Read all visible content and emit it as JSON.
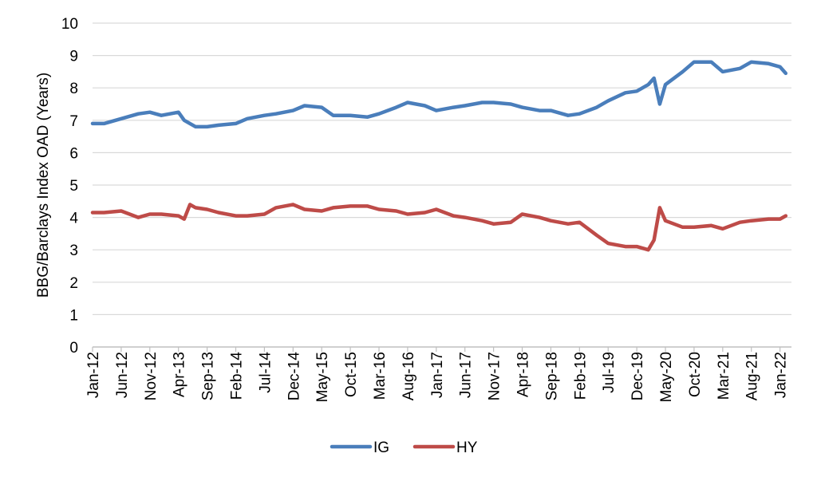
{
  "chart_data": {
    "type": "line",
    "title": "",
    "xlabel": "",
    "ylabel": "BBG/Barclays Index OAD (Years)",
    "ylim": [
      0,
      10
    ],
    "yticks": [
      "0",
      "1",
      "2",
      "3",
      "4",
      "5",
      "6",
      "7",
      "8",
      "9",
      "10"
    ],
    "x_tick_labels": [
      "Jan-12",
      "Jun-12",
      "Nov-12",
      "Apr-13",
      "Sep-13",
      "Feb-14",
      "Jul-14",
      "Dec-14",
      "May-15",
      "Oct-15",
      "Mar-16",
      "Aug-16",
      "Jan-17",
      "Jun-17",
      "Nov-17",
      "Apr-18",
      "Sep-18",
      "Feb-19",
      "Jul-19",
      "Dec-19",
      "May-20",
      "Oct-20",
      "Mar-21",
      "Aug-21",
      "Jan-22"
    ],
    "x_range": [
      "2012-01",
      "2022-03"
    ],
    "grid": "horizontal",
    "legend_position": "bottom",
    "x": [
      "2012-01",
      "2012-03",
      "2012-06",
      "2012-09",
      "2012-11",
      "2013-01",
      "2013-04",
      "2013-05",
      "2013-06",
      "2013-07",
      "2013-09",
      "2013-11",
      "2014-02",
      "2014-04",
      "2014-07",
      "2014-09",
      "2014-12",
      "2015-02",
      "2015-05",
      "2015-07",
      "2015-10",
      "2016-01",
      "2016-03",
      "2016-06",
      "2016-08",
      "2016-11",
      "2017-01",
      "2017-04",
      "2017-06",
      "2017-09",
      "2017-11",
      "2018-02",
      "2018-04",
      "2018-07",
      "2018-09",
      "2018-12",
      "2019-02",
      "2019-05",
      "2019-07",
      "2019-10",
      "2019-12",
      "2020-02",
      "2020-03",
      "2020-04",
      "2020-05",
      "2020-08",
      "2020-10",
      "2021-01",
      "2021-03",
      "2021-06",
      "2021-08",
      "2021-11",
      "2022-01",
      "2022-02"
    ],
    "series": [
      {
        "name": "IG",
        "color": "#4A7EBB",
        "values": [
          6.9,
          6.9,
          7.05,
          7.2,
          7.25,
          7.15,
          7.25,
          7.0,
          6.9,
          6.8,
          6.8,
          6.85,
          6.9,
          7.05,
          7.15,
          7.2,
          7.3,
          7.45,
          7.4,
          7.15,
          7.15,
          7.1,
          7.2,
          7.4,
          7.55,
          7.45,
          7.3,
          7.4,
          7.45,
          7.55,
          7.55,
          7.5,
          7.4,
          7.3,
          7.3,
          7.15,
          7.2,
          7.4,
          7.6,
          7.85,
          7.9,
          8.1,
          8.3,
          7.5,
          8.1,
          8.5,
          8.8,
          8.8,
          8.5,
          8.6,
          8.8,
          8.75,
          8.65,
          8.45
        ]
      },
      {
        "name": "HY",
        "color": "#BE4B48",
        "values": [
          4.15,
          4.15,
          4.2,
          4.0,
          4.1,
          4.1,
          4.05,
          3.95,
          4.4,
          4.3,
          4.25,
          4.15,
          4.05,
          4.05,
          4.1,
          4.3,
          4.4,
          4.25,
          4.2,
          4.3,
          4.35,
          4.35,
          4.25,
          4.2,
          4.1,
          4.15,
          4.25,
          4.05,
          4.0,
          3.9,
          3.8,
          3.85,
          4.1,
          4.0,
          3.9,
          3.8,
          3.85,
          3.45,
          3.2,
          3.1,
          3.1,
          3.0,
          3.3,
          4.3,
          3.9,
          3.7,
          3.7,
          3.75,
          3.65,
          3.85,
          3.9,
          3.95,
          3.95,
          4.05
        ]
      }
    ]
  }
}
